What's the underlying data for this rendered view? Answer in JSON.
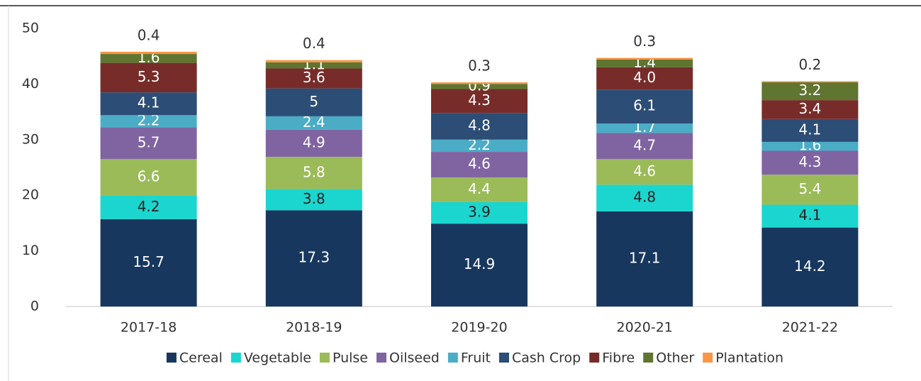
{
  "chart_data": {
    "type": "stacked_bar",
    "categories": [
      "2017-18",
      "2018-19",
      "2019-20",
      "2020-21",
      "2021-22"
    ],
    "series": [
      {
        "name": "Cereal",
        "color": "#17375e",
        "values": [
          15.7,
          17.3,
          14.9,
          17.1,
          14.2
        ]
      },
      {
        "name": "Vegetable",
        "color": "#1ad6cf",
        "values": [
          4.2,
          3.8,
          3.9,
          4.8,
          4.1
        ]
      },
      {
        "name": "Pulse",
        "color": "#9bbb59",
        "values": [
          6.6,
          5.8,
          4.4,
          4.6,
          5.4
        ]
      },
      {
        "name": "Oilseed",
        "color": "#8064a2",
        "values": [
          5.7,
          4.9,
          4.6,
          4.7,
          4.3
        ]
      },
      {
        "name": "Fruit",
        "color": "#4bacc6",
        "values": [
          2.2,
          2.4,
          2.2,
          1.7,
          1.6
        ]
      },
      {
        "name": "Cash Crop",
        "color": "#2c4d75",
        "values": [
          4.1,
          5.0,
          4.8,
          6.1,
          4.1
        ]
      },
      {
        "name": "Fibre",
        "color": "#772c2a",
        "values": [
          5.3,
          3.6,
          4.3,
          4.0,
          3.4
        ],
        "value_labels": [
          "5.3",
          "3.6",
          "4.3",
          "4.0",
          "3.4"
        ]
      },
      {
        "name": "Other",
        "color": "#5f7530",
        "values": [
          1.6,
          1.1,
          0.9,
          1.4,
          3.2
        ]
      },
      {
        "name": "Plantation",
        "color": "#f79646",
        "values": [
          0.4,
          0.4,
          0.3,
          0.3,
          0.2
        ]
      }
    ],
    "ylim": [
      0,
      50
    ],
    "yticks": [
      0,
      10,
      20,
      30,
      40,
      50
    ],
    "legend": "bottom"
  }
}
